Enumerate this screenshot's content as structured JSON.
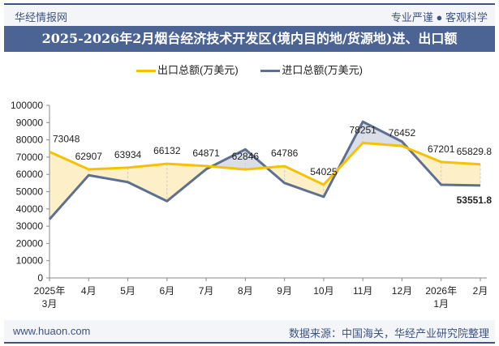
{
  "header": {
    "brand": "华经情报网",
    "slogan": "专业严谨 ● 客观科学"
  },
  "footer": {
    "url": "www.huaon.com",
    "source": "数据来源：中国海关，华经产业研究院整理"
  },
  "colors": {
    "export": "#f5c100",
    "import": "#5f6f8f",
    "export_fill": "#fdf0c8",
    "import_fill": "#d9dee8",
    "title_bg": "#4b6494"
  },
  "chart_data": {
    "type": "line",
    "title": "2025-2026年2月烟台经济技术开发区(境内目的地/货源地)进、出口额",
    "categories": [
      "2025年\n3月",
      "4月",
      "5月",
      "6月",
      "7月",
      "8月",
      "9月",
      "10月",
      "11月",
      "12月",
      "2026年\n1月",
      "2月"
    ],
    "ylim": [
      0,
      100000
    ],
    "yticks": [
      0,
      10000,
      20000,
      30000,
      40000,
      50000,
      60000,
      70000,
      80000,
      90000,
      100000
    ],
    "legend_position": "top",
    "grid": false,
    "series": [
      {
        "name": "出口总额(万美元)",
        "values": [
          73048,
          62907,
          63934,
          66132,
          64871,
          62846,
          64786,
          54025,
          78251,
          76452,
          67201,
          65829.8
        ],
        "labels": [
          "73048",
          "62907",
          "63934",
          "66132",
          "64871",
          "62846",
          "64786",
          "54025",
          "78251",
          "76452",
          "67201",
          "65829.8"
        ]
      },
      {
        "name": "进口总额(万美元)",
        "values": [
          34000,
          59500,
          55500,
          44500,
          63000,
          74500,
          55000,
          47000,
          90500,
          79000,
          54000,
          53551.8
        ],
        "labels": [
          "",
          "",
          "",
          "",
          "",
          "",
          "",
          "",
          "",
          "",
          "",
          "53551.8"
        ]
      }
    ]
  }
}
